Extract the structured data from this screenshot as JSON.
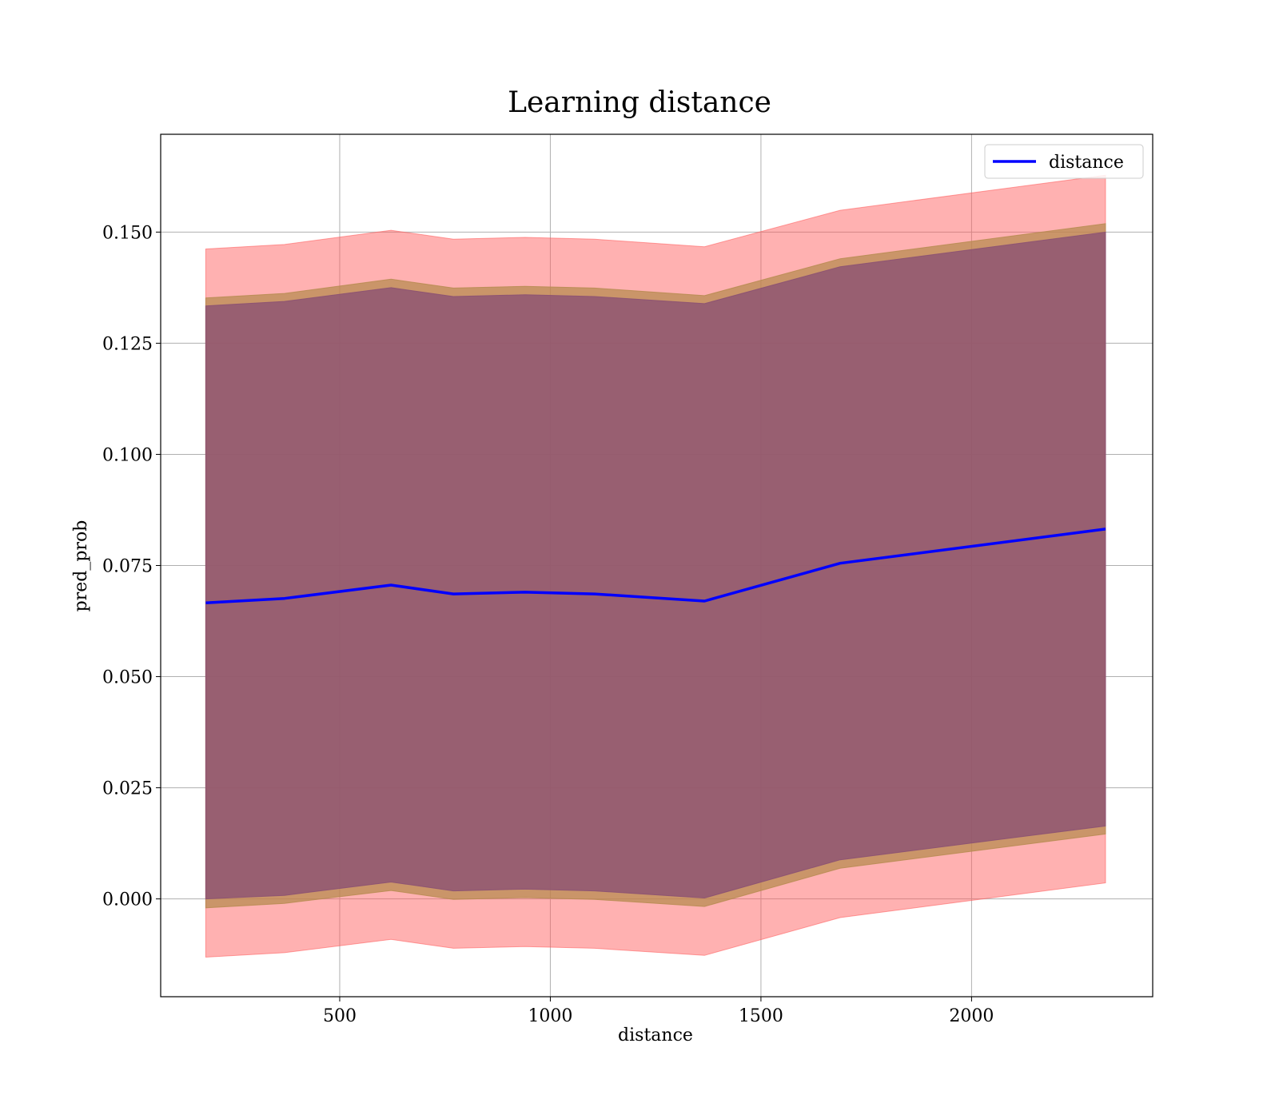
{
  "chart_data": {
    "type": "area",
    "title": "Learning distance",
    "xlabel": "distance",
    "ylabel": "pred_prob",
    "xlim": [
      75,
      2430
    ],
    "ylim": [
      -0.022,
      0.172
    ],
    "xticks": [
      500,
      1000,
      1500,
      2000
    ],
    "yticks": [
      0.0,
      0.025,
      0.05,
      0.075,
      0.1,
      0.125,
      0.15
    ],
    "xtick_labels": [
      "500",
      "1000",
      "1500",
      "2000"
    ],
    "ytick_labels": [
      "0.000",
      "0.025",
      "0.050",
      "0.075",
      "0.100",
      "0.125",
      "0.150"
    ],
    "grid": true,
    "legend": {
      "position": "top-right",
      "entries": [
        "distance"
      ]
    },
    "x": [
      182,
      369,
      622,
      770,
      940,
      1105,
      1366,
      1688,
      2318
    ],
    "series": [
      {
        "name": "distance",
        "kind": "line",
        "color": "#0000ff",
        "values": [
          0.0666,
          0.0676,
          0.0706,
          0.0686,
          0.069,
          0.0686,
          0.067,
          0.0755,
          0.0832
        ]
      }
    ],
    "bands": [
      {
        "color": "#ff5a5a",
        "opacity": 0.47,
        "upper": [
          0.1462,
          0.1472,
          0.1504,
          0.1484,
          0.1488,
          0.1484,
          0.1467,
          0.1549,
          0.1628
        ],
        "lower": [
          -0.0131,
          -0.0121,
          -0.0091,
          -0.0111,
          -0.0107,
          -0.0111,
          -0.0127,
          -0.0042,
          0.0036
        ]
      },
      {
        "color": "#b58a4e",
        "opacity": 0.72,
        "upper": [
          0.1352,
          0.1362,
          0.1394,
          0.1374,
          0.1378,
          0.1374,
          0.1357,
          0.144,
          0.1519
        ],
        "lower": [
          -0.002,
          -0.001,
          0.0019,
          -0.0001,
          0.0003,
          -0.0001,
          -0.0017,
          0.0069,
          0.0146
        ]
      },
      {
        "color": "#8a5073",
        "opacity": 0.78,
        "upper": [
          0.1334,
          0.1344,
          0.1375,
          0.1355,
          0.1359,
          0.1355,
          0.1339,
          0.1422,
          0.15
        ],
        "lower": [
          0.0,
          0.0008,
          0.0038,
          0.0018,
          0.0022,
          0.0018,
          0.0002,
          0.0088,
          0.0164
        ]
      }
    ]
  }
}
